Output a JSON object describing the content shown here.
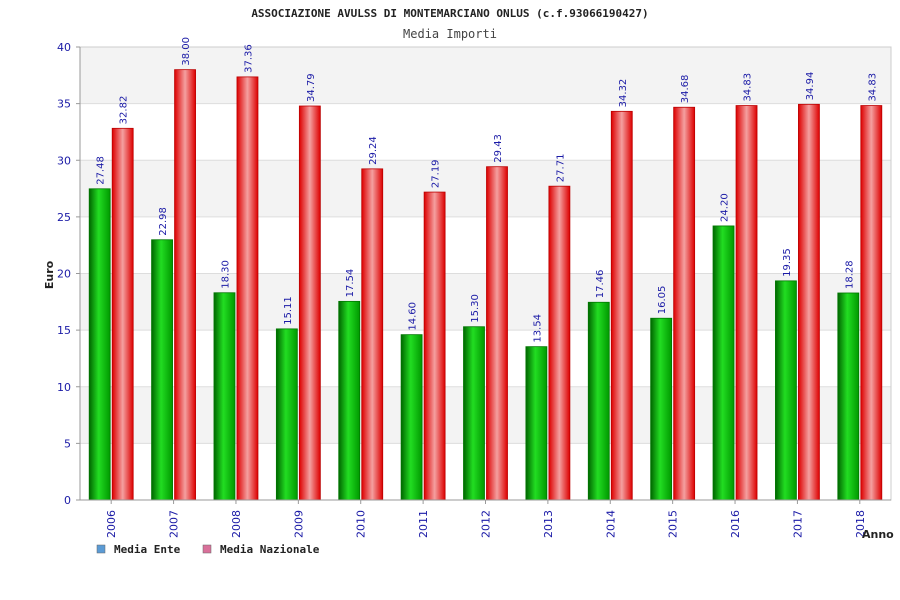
{
  "chart_data": {
    "type": "bar",
    "title": "ASSOCIAZIONE AVULSS DI MONTEMARCIANO ONLUS (c.f.93066190427)",
    "subtitle": "Media Importi",
    "xlabel": "Anno",
    "ylabel": "Euro",
    "ylim": [
      0,
      40
    ],
    "yticks": [
      0,
      5,
      10,
      15,
      20,
      25,
      30,
      35,
      40
    ],
    "grid": true,
    "legend_position": "bottom-left",
    "categories": [
      "2006",
      "2007",
      "2008",
      "2009",
      "2010",
      "2011",
      "2012",
      "2013",
      "2014",
      "2015",
      "2016",
      "2017",
      "2018"
    ],
    "series": [
      {
        "name": "Media Ente",
        "color": "#00a800",
        "legend_color": "#5b9bd5",
        "values": [
          27.48,
          22.98,
          18.3,
          15.11,
          17.54,
          14.6,
          15.3,
          13.54,
          17.46,
          16.05,
          24.2,
          19.35,
          18.28
        ],
        "labels": [
          "27.48",
          "22.98",
          "18.30",
          "15.11",
          "17.54",
          "14.60",
          "15.30",
          "13.54",
          "17.46",
          "16.05",
          "24.20",
          "19.35",
          "18.28"
        ]
      },
      {
        "name": "Media Nazionale",
        "color": "#e80000",
        "legend_color": "#d9709a",
        "values": [
          32.82,
          38.0,
          37.36,
          34.79,
          29.24,
          27.19,
          29.43,
          27.71,
          34.32,
          34.68,
          34.83,
          34.94,
          34.83
        ],
        "labels": [
          "32.82",
          "38.00",
          "37.36",
          "34.79",
          "29.24",
          "27.19",
          "29.43",
          "27.71",
          "34.32",
          "34.68",
          "34.83",
          "34.94",
          "34.83"
        ]
      }
    ]
  }
}
